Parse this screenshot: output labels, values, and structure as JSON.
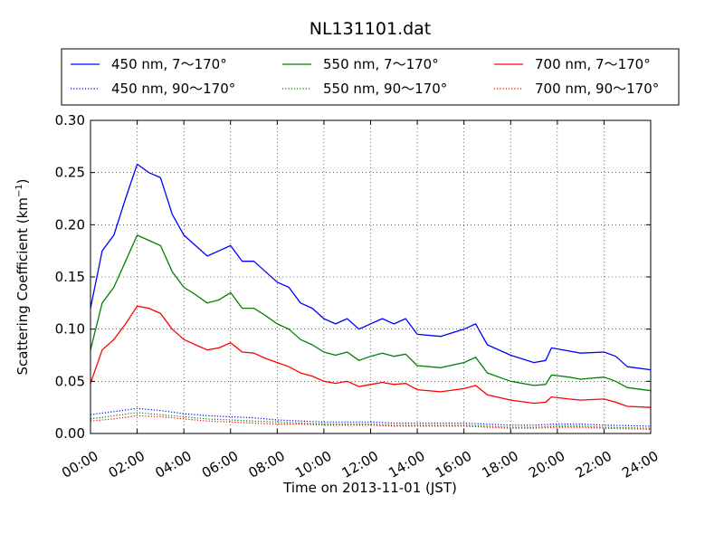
{
  "chart_data": {
    "type": "line",
    "title": "NL131101.dat",
    "xlabel": "Time on 2013-11-01 (JST)",
    "ylabel": "Scattering Coefficient (km",
    "ylabel_sup": "−1",
    "ylabel_close": ")",
    "xlim": [
      "00:00",
      "24:00"
    ],
    "ylim": [
      0.0,
      0.3
    ],
    "grid": true,
    "legend_position": "top, above plot, 3 columns",
    "x_ticks": [
      "00:00",
      "02:00",
      "04:00",
      "06:00",
      "08:00",
      "10:00",
      "12:00",
      "14:00",
      "16:00",
      "18:00",
      "20:00",
      "22:00",
      "24:00"
    ],
    "y_ticks": [
      "0.00",
      "0.05",
      "0.10",
      "0.15",
      "0.20",
      "0.25",
      "0.30"
    ],
    "series": [
      {
        "name": "450 nm, 7～170°",
        "color": "#0000ff",
        "style": "solid",
        "points": [
          [
            "00:00",
            0.12
          ],
          [
            "00:30",
            0.175
          ],
          [
            "01:00",
            0.19
          ],
          [
            "01:30",
            0.225
          ],
          [
            "02:00",
            0.258
          ],
          [
            "02:30",
            0.25
          ],
          [
            "03:00",
            0.245
          ],
          [
            "03:30",
            0.21
          ],
          [
            "04:00",
            0.19
          ],
          [
            "04:30",
            0.18
          ],
          [
            "05:00",
            0.17
          ],
          [
            "05:30",
            0.175
          ],
          [
            "06:00",
            0.18
          ],
          [
            "06:30",
            0.165
          ],
          [
            "07:00",
            0.165
          ],
          [
            "07:30",
            0.155
          ],
          [
            "08:00",
            0.145
          ],
          [
            "08:30",
            0.14
          ],
          [
            "09:00",
            0.125
          ],
          [
            "09:30",
            0.12
          ],
          [
            "10:00",
            0.11
          ],
          [
            "10:30",
            0.105
          ],
          [
            "11:00",
            0.11
          ],
          [
            "11:30",
            0.1
          ],
          [
            "12:00",
            0.105
          ],
          [
            "12:30",
            0.11
          ],
          [
            "13:00",
            0.105
          ],
          [
            "13:30",
            0.11
          ],
          [
            "14:00",
            0.095
          ],
          [
            "15:00",
            0.093
          ],
          [
            "16:00",
            0.1
          ],
          [
            "16:30",
            0.105
          ],
          [
            "17:00",
            0.085
          ],
          [
            "18:00",
            0.075
          ],
          [
            "19:00",
            0.068
          ],
          [
            "19:30",
            0.07
          ],
          [
            "19:45",
            0.082
          ],
          [
            "20:30",
            0.079
          ],
          [
            "21:00",
            0.077
          ],
          [
            "22:00",
            0.078
          ],
          [
            "22:30",
            0.074
          ],
          [
            "23:00",
            0.064
          ],
          [
            "24:00",
            0.061
          ]
        ]
      },
      {
        "name": "550 nm, 7～170°",
        "color": "#008000",
        "style": "solid",
        "points": [
          [
            "00:00",
            0.08
          ],
          [
            "00:30",
            0.125
          ],
          [
            "01:00",
            0.14
          ],
          [
            "01:30",
            0.165
          ],
          [
            "02:00",
            0.19
          ],
          [
            "02:30",
            0.185
          ],
          [
            "03:00",
            0.18
          ],
          [
            "03:30",
            0.155
          ],
          [
            "04:00",
            0.14
          ],
          [
            "04:30",
            0.133
          ],
          [
            "05:00",
            0.125
          ],
          [
            "05:30",
            0.128
          ],
          [
            "06:00",
            0.135
          ],
          [
            "06:30",
            0.12
          ],
          [
            "07:00",
            0.12
          ],
          [
            "07:30",
            0.113
          ],
          [
            "08:00",
            0.105
          ],
          [
            "08:30",
            0.1
          ],
          [
            "09:00",
            0.09
          ],
          [
            "09:30",
            0.085
          ],
          [
            "10:00",
            0.078
          ],
          [
            "10:30",
            0.075
          ],
          [
            "11:00",
            0.078
          ],
          [
            "11:30",
            0.07
          ],
          [
            "12:00",
            0.074
          ],
          [
            "12:30",
            0.077
          ],
          [
            "13:00",
            0.074
          ],
          [
            "13:30",
            0.076
          ],
          [
            "14:00",
            0.065
          ],
          [
            "15:00",
            0.063
          ],
          [
            "16:00",
            0.068
          ],
          [
            "16:30",
            0.073
          ],
          [
            "17:00",
            0.058
          ],
          [
            "18:00",
            0.05
          ],
          [
            "19:00",
            0.046
          ],
          [
            "19:30",
            0.047
          ],
          [
            "19:45",
            0.056
          ],
          [
            "20:30",
            0.054
          ],
          [
            "21:00",
            0.052
          ],
          [
            "22:00",
            0.054
          ],
          [
            "22:30",
            0.05
          ],
          [
            "23:00",
            0.044
          ],
          [
            "24:00",
            0.041
          ]
        ]
      },
      {
        "name": "700 nm, 7～170°",
        "color": "#ff0000",
        "style": "solid",
        "points": [
          [
            "00:00",
            0.048
          ],
          [
            "00:30",
            0.08
          ],
          [
            "01:00",
            0.09
          ],
          [
            "01:30",
            0.105
          ],
          [
            "02:00",
            0.122
          ],
          [
            "02:30",
            0.12
          ],
          [
            "03:00",
            0.115
          ],
          [
            "03:30",
            0.1
          ],
          [
            "04:00",
            0.09
          ],
          [
            "04:30",
            0.085
          ],
          [
            "05:00",
            0.08
          ],
          [
            "05:30",
            0.082
          ],
          [
            "06:00",
            0.087
          ],
          [
            "06:30",
            0.078
          ],
          [
            "07:00",
            0.077
          ],
          [
            "07:30",
            0.072
          ],
          [
            "08:00",
            0.068
          ],
          [
            "08:30",
            0.064
          ],
          [
            "09:00",
            0.058
          ],
          [
            "09:30",
            0.055
          ],
          [
            "10:00",
            0.05
          ],
          [
            "10:30",
            0.048
          ],
          [
            "11:00",
            0.05
          ],
          [
            "11:30",
            0.045
          ],
          [
            "12:00",
            0.047
          ],
          [
            "12:30",
            0.049
          ],
          [
            "13:00",
            0.047
          ],
          [
            "13:30",
            0.048
          ],
          [
            "14:00",
            0.042
          ],
          [
            "15:00",
            0.04
          ],
          [
            "16:00",
            0.043
          ],
          [
            "16:30",
            0.046
          ],
          [
            "17:00",
            0.037
          ],
          [
            "18:00",
            0.032
          ],
          [
            "19:00",
            0.029
          ],
          [
            "19:30",
            0.03
          ],
          [
            "19:45",
            0.035
          ],
          [
            "20:30",
            0.033
          ],
          [
            "21:00",
            0.032
          ],
          [
            "22:00",
            0.033
          ],
          [
            "22:30",
            0.03
          ],
          [
            "23:00",
            0.026
          ],
          [
            "24:00",
            0.025
          ]
        ]
      },
      {
        "name": "450 nm, 90～170°",
        "color": "#0000ff",
        "style": "dotted",
        "points": [
          [
            "00:00",
            0.018
          ],
          [
            "01:00",
            0.021
          ],
          [
            "02:00",
            0.024
          ],
          [
            "03:00",
            0.022
          ],
          [
            "04:00",
            0.019
          ],
          [
            "05:00",
            0.017
          ],
          [
            "06:00",
            0.016
          ],
          [
            "07:00",
            0.015
          ],
          [
            "08:00",
            0.013
          ],
          [
            "09:00",
            0.012
          ],
          [
            "10:00",
            0.011
          ],
          [
            "11:00",
            0.011
          ],
          [
            "12:00",
            0.011
          ],
          [
            "13:00",
            0.01
          ],
          [
            "14:00",
            0.01
          ],
          [
            "16:00",
            0.01
          ],
          [
            "17:00",
            0.009
          ],
          [
            "18:00",
            0.008
          ],
          [
            "19:00",
            0.008
          ],
          [
            "20:00",
            0.009
          ],
          [
            "21:00",
            0.009
          ],
          [
            "22:00",
            0.008
          ],
          [
            "24:00",
            0.007
          ]
        ]
      },
      {
        "name": "550 nm, 90～170°",
        "color": "#008000",
        "style": "dotted",
        "points": [
          [
            "00:00",
            0.014
          ],
          [
            "01:00",
            0.017
          ],
          [
            "02:00",
            0.02
          ],
          [
            "03:00",
            0.018
          ],
          [
            "04:00",
            0.016
          ],
          [
            "05:00",
            0.014
          ],
          [
            "06:00",
            0.013
          ],
          [
            "07:00",
            0.012
          ],
          [
            "08:00",
            0.011
          ],
          [
            "09:00",
            0.01
          ],
          [
            "10:00",
            0.009
          ],
          [
            "11:00",
            0.009
          ],
          [
            "12:00",
            0.009
          ],
          [
            "13:00",
            0.008
          ],
          [
            "14:00",
            0.008
          ],
          [
            "16:00",
            0.008
          ],
          [
            "17:00",
            0.007
          ],
          [
            "18:00",
            0.006
          ],
          [
            "19:00",
            0.006
          ],
          [
            "20:00",
            0.007
          ],
          [
            "21:00",
            0.007
          ],
          [
            "22:00",
            0.006
          ],
          [
            "24:00",
            0.005
          ]
        ]
      },
      {
        "name": "700 nm, 90～170°",
        "color": "#ff0000",
        "style": "dotted",
        "points": [
          [
            "00:00",
            0.012
          ],
          [
            "01:00",
            0.014
          ],
          [
            "02:00",
            0.017
          ],
          [
            "03:00",
            0.016
          ],
          [
            "04:00",
            0.014
          ],
          [
            "05:00",
            0.012
          ],
          [
            "06:00",
            0.011
          ],
          [
            "07:00",
            0.01
          ],
          [
            "08:00",
            0.009
          ],
          [
            "09:00",
            0.009
          ],
          [
            "10:00",
            0.008
          ],
          [
            "11:00",
            0.008
          ],
          [
            "12:00",
            0.008
          ],
          [
            "13:00",
            0.007
          ],
          [
            "14:00",
            0.007
          ],
          [
            "16:00",
            0.007
          ],
          [
            "17:00",
            0.006
          ],
          [
            "18:00",
            0.005
          ],
          [
            "19:00",
            0.005
          ],
          [
            "20:00",
            0.006
          ],
          [
            "21:00",
            0.006
          ],
          [
            "22:00",
            0.005
          ],
          [
            "24:00",
            0.004
          ]
        ]
      }
    ]
  }
}
